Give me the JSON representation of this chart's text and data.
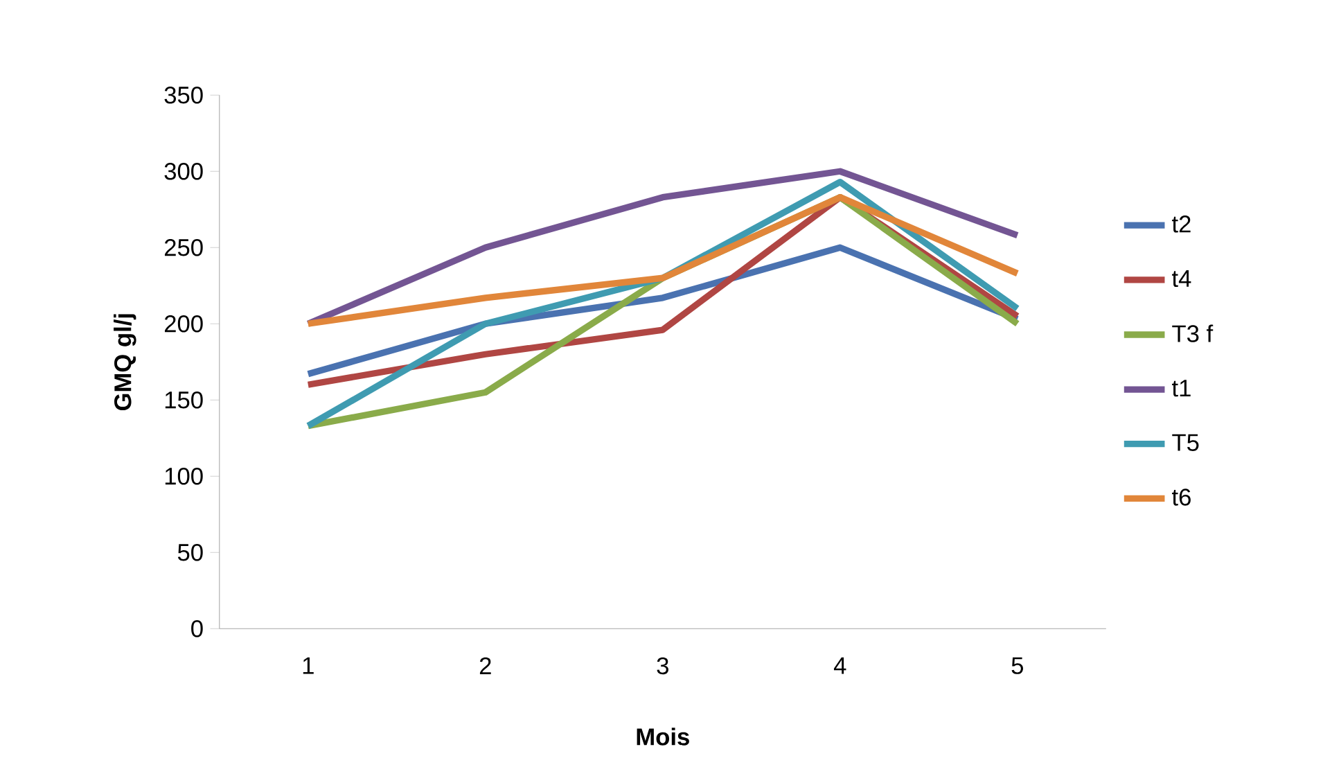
{
  "chart_data": {
    "type": "line",
    "xlabel": "Mois",
    "ylabel": "GMQ gl/j",
    "categories": [
      "1",
      "2",
      "3",
      "4",
      "5"
    ],
    "series": [
      {
        "name": "t2",
        "color": "#4a72b0",
        "values": [
          167,
          200,
          217,
          250,
          203
        ]
      },
      {
        "name": "t4",
        "color": "#b04643",
        "values": [
          160,
          180,
          196,
          283,
          205
        ]
      },
      {
        "name": "T3 f",
        "color": "#8aab4a",
        "values": [
          133,
          155,
          230,
          283,
          200
        ]
      },
      {
        "name": "t1",
        "color": "#735593",
        "values": [
          200,
          250,
          283,
          300,
          258
        ]
      },
      {
        "name": "T5",
        "color": "#3f9bb1",
        "values": [
          133,
          200,
          230,
          293,
          210
        ]
      },
      {
        "name": "t6",
        "color": "#e1863a",
        "values": [
          200,
          217,
          230,
          283,
          233
        ]
      }
    ],
    "ylim": [
      0,
      350
    ],
    "yticks": [
      0,
      50,
      100,
      150,
      200,
      250,
      300,
      350
    ],
    "grid": false,
    "legend": "right",
    "marker": "none",
    "line_style": "solid"
  }
}
